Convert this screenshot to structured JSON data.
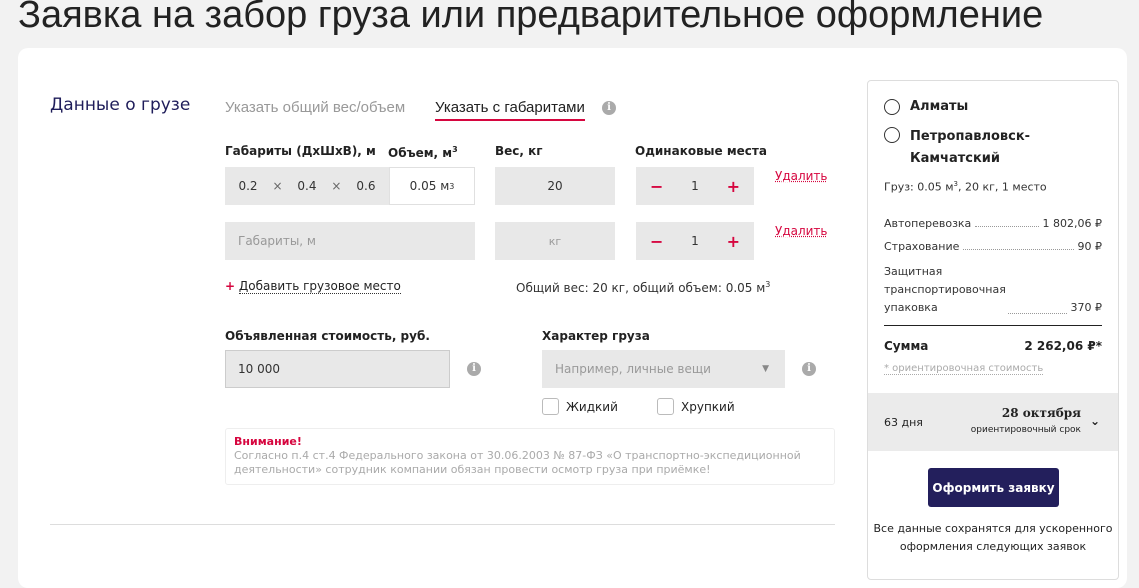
{
  "page_title": "Заявка на забор груза или предварительное оформление",
  "section_title": "Данные о грузе",
  "tabs": [
    {
      "label": "Указать общий вес/объем",
      "active": false
    },
    {
      "label": "Указать с габаритами",
      "active": true
    }
  ],
  "columns": {
    "dims": "Габариты (ДхШхВ), м",
    "volume": "Объем, м",
    "volume_sup": "3",
    "weight": "Вес, кг",
    "places": "Одинаковые места"
  },
  "rows": [
    {
      "d": "0.2",
      "w": "0.4",
      "h": "0.6",
      "sep": "×",
      "volume": "0.05 м",
      "volume_sup": "3",
      "weight": "20",
      "count": "1",
      "delete": "Удалить"
    },
    {
      "dims_placeholder": "Габариты, м",
      "weight_placeholder": "кг",
      "count": "1",
      "delete": "Удалить"
    }
  ],
  "add_place": "Добавить грузовое место",
  "totals": "Общий вес: 20 кг, общий объем: 0.05 м",
  "totals_sup": "3",
  "declared_value": {
    "label": "Объявленная стоимость, руб.",
    "value": "10 000"
  },
  "cargo_type": {
    "label": "Характер груза",
    "placeholder": "Например, личные вещи",
    "options": [
      "Жидкий",
      "Хрупкий"
    ]
  },
  "warning": {
    "title": "Внимание!",
    "text": "Согласно п.4 ст.4 Федерального закона от 30.06.2003 № 87-ФЗ «О транспортно-экспедиционной деятельности» сотрудник компании обязан провести осмотр груза при приёмке!"
  },
  "summary": {
    "cities": [
      "Алматы",
      "Петропавловск-Камчатский"
    ],
    "cargo": "Груз: 0.05 м",
    "cargo_sup": "3",
    "cargo_rest": ", 20 кг, 1 место",
    "lines": [
      {
        "label": "Автоперевозка",
        "value": "1 802,06 ₽"
      },
      {
        "label": "Страхование",
        "value": "90 ₽"
      },
      {
        "label": "Защитная транспортировочная упаковка",
        "value": "370 ₽"
      }
    ],
    "total_label": "Сумма",
    "total_value": "2 262,06 ₽*",
    "note": "* ориентировочная стоимость",
    "days": "63 дня",
    "date": "28 октября",
    "date_note": "ориентировочный срок",
    "submit": "Оформить заявку",
    "footer": "Все данные сохранятся для ускоренного оформления следующих заявок"
  },
  "colors": {
    "accent": "#d6063f",
    "brand": "#231f5c"
  }
}
